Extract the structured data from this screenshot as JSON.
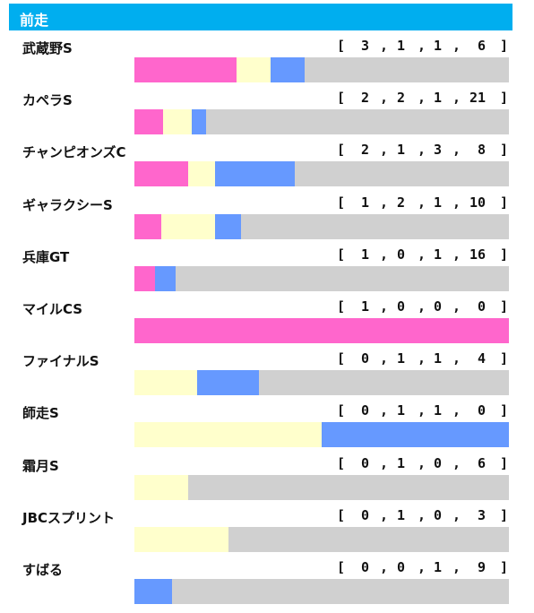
{
  "header": {
    "title": "前走"
  },
  "colors": {
    "first": "#ff66cc",
    "second": "#ffffcc",
    "third": "#6699ff",
    "other": "#d0d0d0",
    "header": "#00aeef"
  },
  "chart_data": {
    "type": "bar",
    "stacked": true,
    "orientation": "horizontal",
    "categories": [
      "武蔵野S",
      "カペラS",
      "チャンピオンズC",
      "ギャラクシーS",
      "兵庫GT",
      "マイルCS",
      "ファイナルS",
      "師走S",
      "霜月S",
      "JBCスプリント",
      "すばる"
    ],
    "records": [
      [
        3,
        1,
        1,
        6
      ],
      [
        2,
        2,
        1,
        21
      ],
      [
        2,
        1,
        3,
        8
      ],
      [
        1,
        2,
        1,
        10
      ],
      [
        1,
        0,
        1,
        16
      ],
      [
        1,
        0,
        0,
        0
      ],
      [
        0,
        1,
        1,
        4
      ],
      [
        0,
        1,
        1,
        0
      ],
      [
        0,
        1,
        0,
        6
      ],
      [
        0,
        1,
        0,
        3
      ],
      [
        0,
        0,
        1,
        9
      ]
    ]
  }
}
